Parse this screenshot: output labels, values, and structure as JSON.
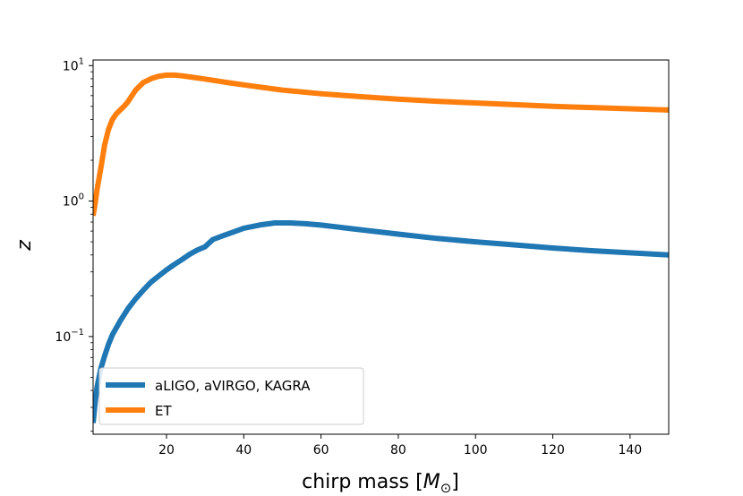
{
  "chart_data": {
    "type": "line",
    "xlabel": "chirp mass [M⊙]",
    "xlabel_text": "chirp mass [",
    "xlabel_symbol": "M",
    "xlabel_subscript": "⊙",
    "xlabel_close": "]",
    "ylabel": "z",
    "xlim": [
      1,
      150
    ],
    "ylim": [
      0.019,
      11
    ],
    "yscale": "log",
    "xticks": [
      {
        "value": 20,
        "label": "20"
      },
      {
        "value": 40,
        "label": "40"
      },
      {
        "value": 60,
        "label": "60"
      },
      {
        "value": 80,
        "label": "80"
      },
      {
        "value": 100,
        "label": "100"
      },
      {
        "value": 120,
        "label": "120"
      },
      {
        "value": 140,
        "label": "140"
      }
    ],
    "yticks": [
      {
        "value": 0.1,
        "base": "10",
        "exp": "−1"
      },
      {
        "value": 1,
        "base": "10",
        "exp": "0"
      },
      {
        "value": 10,
        "base": "10",
        "exp": "1"
      }
    ],
    "legend_position": "lower-left",
    "series": [
      {
        "name": "aLIGO, aVIRGO, KAGRA",
        "color": "#1f77b4",
        "x": [
          1,
          1.5,
          2,
          3,
          4,
          5,
          6,
          8,
          10,
          12,
          14,
          16,
          18,
          20,
          22,
          24,
          26,
          28,
          30,
          32,
          35,
          38,
          40,
          44,
          48,
          52,
          56,
          60,
          70,
          80,
          90,
          100,
          110,
          120,
          130,
          140,
          150
        ],
        "y": [
          0.023,
          0.032,
          0.042,
          0.058,
          0.072,
          0.088,
          0.103,
          0.13,
          0.16,
          0.19,
          0.22,
          0.252,
          0.28,
          0.31,
          0.34,
          0.37,
          0.405,
          0.435,
          0.46,
          0.52,
          0.56,
          0.6,
          0.63,
          0.665,
          0.69,
          0.69,
          0.68,
          0.665,
          0.615,
          0.57,
          0.53,
          0.5,
          0.475,
          0.45,
          0.43,
          0.415,
          0.4
        ]
      },
      {
        "name": "ET",
        "color": "#ff7f0e",
        "x": [
          1,
          1.5,
          2,
          3,
          4,
          5,
          6,
          7,
          8,
          9,
          10,
          12,
          14,
          16,
          18,
          20,
          22,
          24,
          26,
          30,
          35,
          40,
          50,
          60,
          70,
          80,
          90,
          100,
          110,
          120,
          130,
          140,
          150
        ],
        "y": [
          0.78,
          0.95,
          1.2,
          1.75,
          2.6,
          3.4,
          4.0,
          4.4,
          4.7,
          5.0,
          5.4,
          6.6,
          7.5,
          8.0,
          8.35,
          8.5,
          8.5,
          8.4,
          8.25,
          7.95,
          7.55,
          7.2,
          6.6,
          6.2,
          5.9,
          5.65,
          5.45,
          5.3,
          5.15,
          5.0,
          4.9,
          4.8,
          4.7
        ]
      }
    ]
  }
}
